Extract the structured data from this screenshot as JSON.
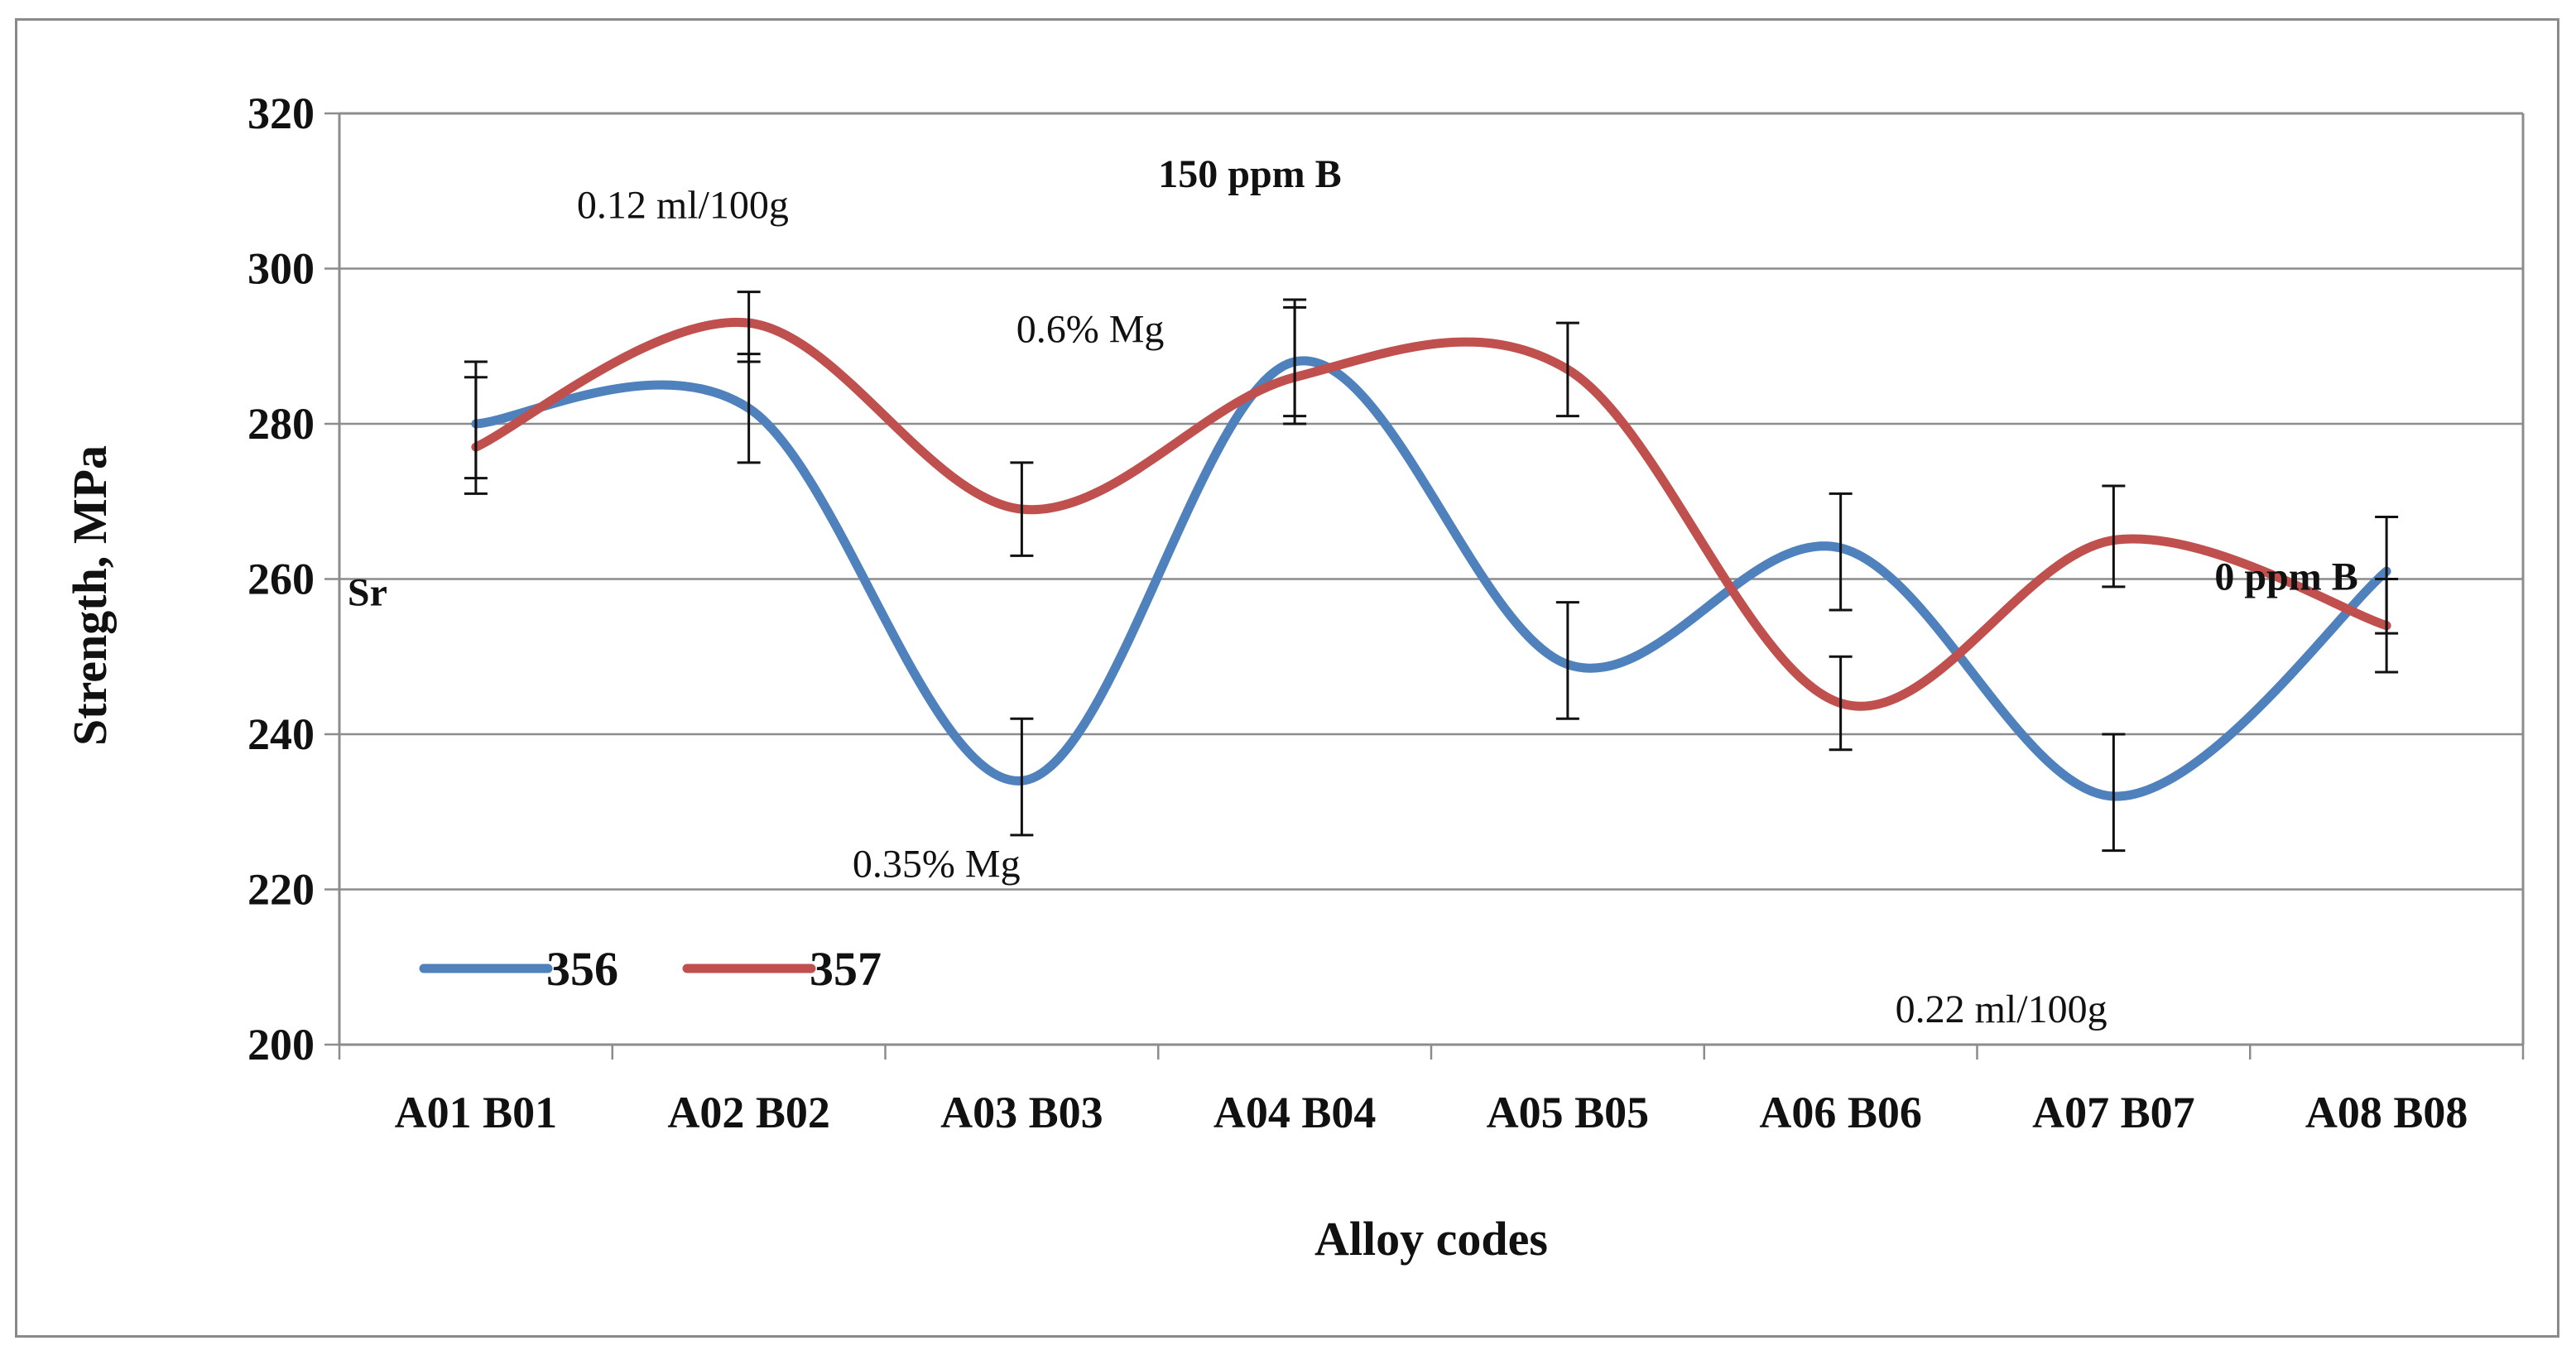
{
  "chart_data": {
    "type": "line",
    "title": "",
    "xlabel": "Alloy codes",
    "ylabel": "Strength, MPa",
    "ylim": [
      200,
      320
    ],
    "yticks": [
      200,
      220,
      240,
      260,
      280,
      300,
      320
    ],
    "grid": true,
    "legend_position": "bottom-left",
    "categories": [
      "A01 B01",
      "A02 B02",
      "A03 B03",
      "A04 B04",
      "A05 B05",
      "A06 B06",
      "A07 B07",
      "A08 B08"
    ],
    "series": [
      {
        "name": "356",
        "color": "#4f81bd",
        "values": [
          280,
          282,
          234,
          288,
          249,
          264,
          232,
          261
        ],
        "error_low": [
          273,
          275,
          227,
          281,
          242,
          256,
          225,
          253
        ],
        "error_high": [
          286,
          289,
          242,
          295,
          257,
          271,
          240,
          268
        ]
      },
      {
        "name": "357",
        "color": "#c0504d",
        "values": [
          277,
          293,
          269,
          286,
          287,
          244,
          265,
          254
        ],
        "error_low": [
          271,
          288,
          263,
          280,
          281,
          238,
          259,
          248
        ],
        "error_high": [
          288,
          297,
          275,
          296,
          293,
          250,
          272,
          260
        ]
      }
    ],
    "annotations": [
      {
        "text": "0.12 ml/100g",
        "bold": false,
        "x_index": 0.87,
        "y": 306.5
      },
      {
        "text": "150 ppm B",
        "bold": true,
        "x_index": 3.0,
        "y": 310.5
      },
      {
        "text": "0.6% Mg",
        "bold": false,
        "x_index": 2.48,
        "y": 290.5
      },
      {
        "text": "Sr",
        "bold": true,
        "x_index": 0.03,
        "y": 256.6
      },
      {
        "text": "0.35% Mg",
        "bold": false,
        "x_index": 1.88,
        "y": 221.6
      },
      {
        "text": "0 ppm B",
        "bold": true,
        "x_index": 6.87,
        "y": 258.6
      },
      {
        "text": "0.22 ml/100g",
        "bold": false,
        "x_index": 5.7,
        "y": 202.9
      }
    ]
  }
}
